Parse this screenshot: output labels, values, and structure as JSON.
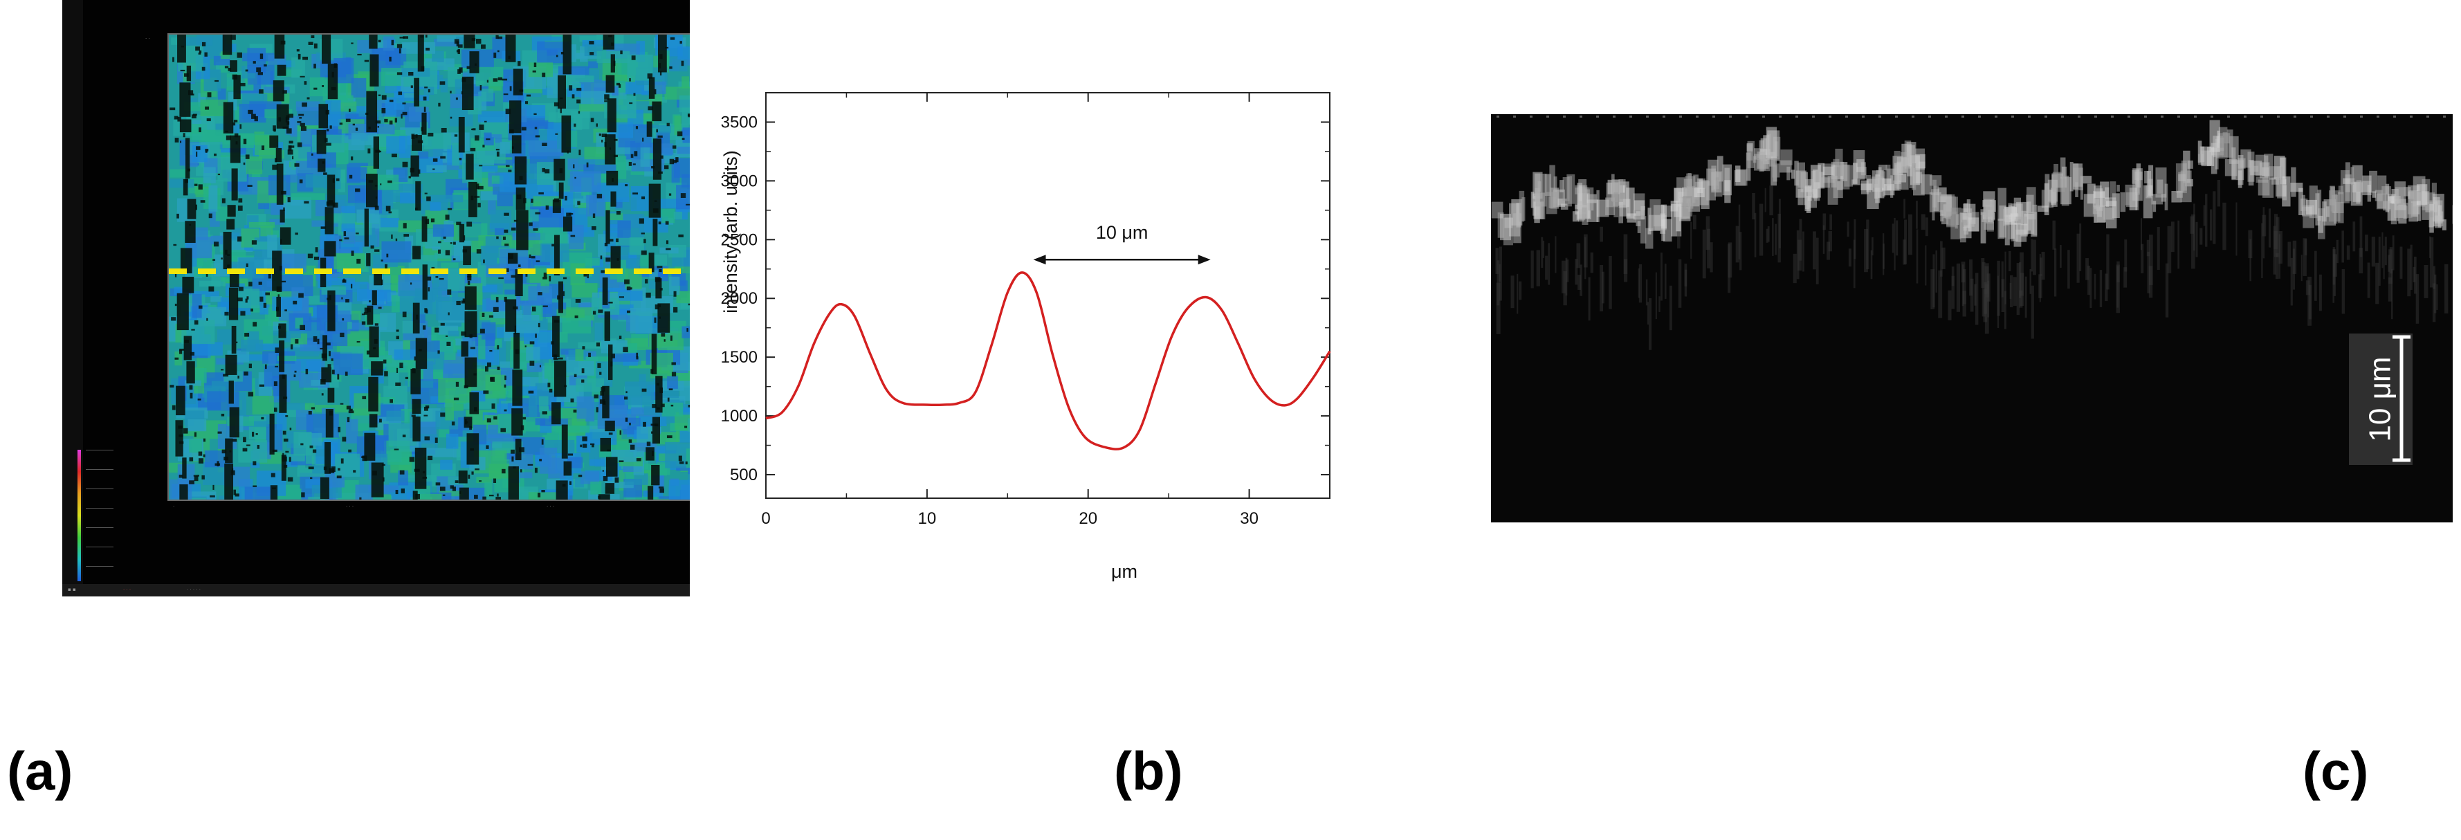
{
  "panel_labels": {
    "a": "(a)",
    "b": "(b)",
    "c": "(c)"
  },
  "chart_data": {
    "type": "line",
    "xlabel": "μm",
    "ylabel": "intensity (arb. units)",
    "xlim": [
      0,
      35
    ],
    "ylim": [
      300,
      3750
    ],
    "xticks": [
      0,
      10,
      20,
      30
    ],
    "yticks": [
      500,
      1000,
      1500,
      2000,
      2500,
      3000,
      3500
    ],
    "grid": false,
    "series": [
      {
        "color": "#d42020",
        "x": [
          0,
          1,
          2,
          3,
          4,
          4.7,
          5.5,
          6.5,
          7.5,
          8.5,
          10,
          11,
          12,
          13,
          14,
          15,
          15.9,
          16.8,
          17.8,
          18.8,
          19.8,
          21,
          22.2,
          23.2,
          24.2,
          25.2,
          26.2,
          27.3,
          28.3,
          29.3,
          30.3,
          31.3,
          32.2,
          33,
          34,
          35
        ],
        "y": [
          980,
          1030,
          1250,
          1620,
          1880,
          1950,
          1850,
          1520,
          1220,
          1110,
          1095,
          1095,
          1110,
          1200,
          1600,
          2050,
          2220,
          2050,
          1520,
          1070,
          820,
          735,
          730,
          880,
          1280,
          1680,
          1920,
          2010,
          1900,
          1620,
          1320,
          1140,
          1090,
          1150,
          1330,
          1550
        ]
      }
    ],
    "annotation": {
      "text": "10 μm",
      "x_start": 16.6,
      "x_end": 27.6,
      "y": 2330
    }
  },
  "panel_a": {
    "colorbar_colors": [
      "#e03be0",
      "#e02a2a",
      "#e8a020",
      "#d8e020",
      "#40d040",
      "#20c0c0",
      "#2060e0"
    ],
    "profile_line_color": "#f2e60a"
  },
  "panel_c": {
    "scale_label": "10 μm"
  }
}
